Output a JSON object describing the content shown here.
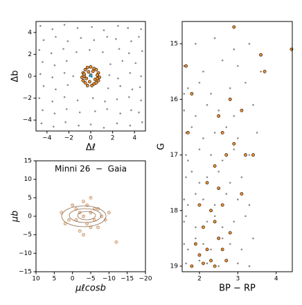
{
  "chart_data": [
    {
      "type": "scatter",
      "xlabel": "Δℓ",
      "ylabel": "Δb",
      "xlim": [
        -5,
        5
      ],
      "ylim": [
        -5,
        5
      ],
      "xticks": [
        {
          "value": -4,
          "label": "−4"
        },
        {
          "value": -2,
          "label": "−2"
        },
        0,
        2,
        4
      ],
      "yticks": [
        {
          "value": -4,
          "label": "−4"
        },
        {
          "value": -2,
          "label": "−2"
        },
        0,
        2,
        4
      ],
      "series": [
        {
          "color": "#8c8c8c",
          "x": [
            -4.6,
            -3.5,
            -2.4,
            -1.2,
            0.1,
            1.2,
            2.5,
            3.4,
            4.6,
            -4.3,
            -3.2,
            -2.1,
            -0.9,
            0.3,
            1.5,
            2.3,
            3.7,
            4.4,
            -4.7,
            -3.6,
            -2.5,
            -1.3,
            -0.1,
            1.1,
            2.6,
            3.5,
            4.7,
            -4.4,
            -3.3,
            -2.2,
            1.8,
            2.9,
            4.1,
            -4.6,
            -3.5,
            -2.4,
            -1.6,
            1.7,
            2.5,
            3.6,
            4.6,
            -4.3,
            -3.2,
            -2.1,
            1.6,
            2.7,
            3.8,
            4.5,
            -4.7,
            -3.5,
            -2.4,
            -1.2,
            0.2,
            1.3,
            2.4,
            3.5,
            4.6,
            -4.4,
            -3.3,
            -2.2,
            -1.0,
            0.4,
            1.5,
            2.7,
            3.7,
            4.4,
            -4.5,
            -3.4,
            -2.3,
            -1.1,
            0.0,
            1.2,
            2.4,
            3.6,
            4.7
          ],
          "y": [
            4.6,
            4.3,
            4.7,
            4.4,
            4.5,
            4.2,
            4.6,
            4.4,
            4.3,
            3.3,
            3.6,
            3.2,
            3.5,
            3.3,
            3.6,
            3.4,
            3.2,
            3.6,
            2.4,
            2.1,
            2.5,
            2.2,
            2.4,
            2.2,
            2.5,
            2.1,
            2.3,
            1.3,
            1.0,
            1.4,
            1.1,
            1.4,
            1.2,
            0.2,
            -0.1,
            0.3,
            0.0,
            0.1,
            -0.2,
            0.3,
            0.0,
            -0.9,
            -1.2,
            -0.8,
            -1.1,
            -0.9,
            -1.2,
            -1.0,
            -2.0,
            -2.3,
            -1.9,
            -2.2,
            -2.0,
            -2.3,
            -2.1,
            -1.9,
            -2.2,
            -3.1,
            -3.4,
            -3.0,
            -3.3,
            -3.2,
            -3.0,
            -3.4,
            -3.1,
            -3.3,
            -4.3,
            -4.6,
            -4.2,
            -4.5,
            -4.4,
            -4.7,
            -4.3,
            -4.5,
            -4.2
          ]
        },
        {
          "color": "#f28e2b",
          "edgecolor": "#000000",
          "x": [
            -0.7,
            -0.5,
            -0.3,
            0.0,
            0.3,
            0.5,
            0.7,
            -0.8,
            -0.6,
            -0.2,
            0.2,
            0.6,
            0.8,
            -0.7,
            -0.4,
            0.0,
            0.4,
            0.7,
            -0.5,
            -0.1,
            0.3,
            0.5,
            -0.3,
            0.1,
            -0.6,
            0.6
          ],
          "y": [
            0.3,
            0.6,
            0.8,
            0.85,
            0.7,
            0.6,
            0.3,
            -0.1,
            0.0,
            0.4,
            0.45,
            0.1,
            -0.1,
            -0.4,
            -0.2,
            0.1,
            -0.3,
            -0.4,
            -0.6,
            -0.5,
            -0.7,
            -0.6,
            -0.85,
            -0.85,
            0.2,
            -0.2
          ]
        },
        {
          "color": "#1f9bd6",
          "x": [
            0.0,
            -0.1,
            0.1
          ],
          "y": [
            0.1,
            0.0,
            -0.05
          ]
        }
      ]
    },
    {
      "type": "scatter",
      "title": "Minni 26  −  Gaia",
      "xlabel": "μℓcosb",
      "ylabel": "μb",
      "xlim": [
        10,
        -20
      ],
      "ylim": [
        -15,
        15
      ],
      "xticks": [
        10,
        5,
        0,
        {
          "value": -5,
          "label": "−5"
        },
        {
          "value": -10,
          "label": "−10"
        },
        {
          "value": -15,
          "label": "−15"
        },
        {
          "value": -20,
          "label": "−20"
        }
      ],
      "yticks": [
        {
          "value": -15,
          "label": "−15"
        },
        {
          "value": -10,
          "label": "−10"
        },
        {
          "value": -5,
          "label": "−5"
        },
        0,
        5,
        10,
        15
      ],
      "series": [
        {
          "color": "#f5d5b5",
          "edgecolor": "#b08060",
          "x": [
            -3,
            -5,
            -1,
            -7,
            0,
            -4,
            -2,
            -6,
            -8,
            2,
            -3,
            -5,
            -1,
            -9,
            -4,
            -2,
            -6,
            1,
            -10,
            -3,
            -7,
            -12,
            3,
            -5
          ],
          "y": [
            0,
            1,
            -1,
            2,
            3,
            -2,
            1,
            -1,
            0,
            -2,
            4,
            -3,
            2,
            -1,
            3,
            -4,
            2,
            -1,
            1,
            -5,
            -3,
            -7,
            1,
            5
          ]
        }
      ]
    },
    {
      "type": "scatter",
      "xlabel": "BP − RP",
      "ylabel": "G",
      "xlim": [
        1.55,
        4.42
      ],
      "ylim": [
        19.1,
        14.6
      ],
      "xticks": [
        2,
        3,
        4
      ],
      "yticks": [
        15,
        16,
        17,
        18,
        19
      ],
      "series": [
        {
          "color": "#8c8c8c",
          "x": [
            1.9,
            2.4,
            2.9,
            3.3,
            1.6,
            2.1,
            2.6,
            3.0,
            3.6,
            1.7,
            2.0,
            2.3,
            2.8,
            3.2,
            1.6,
            1.6,
            1.9,
            2.2,
            2.5,
            2.9,
            3.4,
            1.65,
            1.8,
            2.1,
            2.4,
            2.7,
            3.0,
            3.5,
            1.65,
            1.7,
            2.0,
            2.3,
            2.6,
            2.9,
            3.3,
            1.65,
            1.8,
            2.0,
            2.2,
            2.5,
            2.8,
            3.1,
            1.6,
            1.7,
            1.9,
            2.1,
            2.4,
            2.7,
            3.0,
            3.3,
            1.6,
            1.65,
            1.9,
            2.2,
            2.4,
            2.6,
            2.9,
            3.2,
            1.6,
            1.7,
            1.9,
            2.1,
            2.3,
            2.6,
            2.8,
            3.1,
            3.4,
            1.65,
            1.8,
            2.0,
            2.2,
            2.5,
            2.7,
            3.0,
            3.3
          ],
          "y": [
            15.0,
            14.9,
            15.1,
            15.0,
            15.4,
            15.5,
            15.3,
            15.4,
            15.5,
            15.8,
            15.7,
            15.9,
            15.8,
            15.7,
            15.9,
            16.2,
            16.3,
            16.1,
            16.2,
            16.3,
            16.1,
            16.6,
            16.5,
            16.7,
            16.6,
            16.5,
            16.7,
            16.6,
            17.0,
            17.1,
            16.9,
            17.0,
            17.1,
            16.9,
            17.0,
            17.4,
            17.3,
            17.5,
            17.4,
            17.3,
            17.5,
            17.4,
            17.8,
            17.9,
            17.7,
            17.8,
            17.9,
            17.7,
            17.8,
            17.9,
            18.2,
            18.1,
            18.3,
            18.2,
            18.1,
            18.3,
            18.2,
            18.1,
            18.6,
            18.7,
            18.5,
            18.6,
            18.7,
            18.5,
            18.6,
            18.7,
            18.5,
            18.95,
            19.0,
            18.9,
            18.95,
            19.0,
            18.9,
            18.95,
            19.0
          ]
        },
        {
          "color": "#f28e2b",
          "edgecolor": "#000000",
          "x": [
            2.9,
            3.6,
            4.4,
            3.7,
            1.65,
            2.8,
            1.8,
            2.5,
            3.1,
            2.6,
            2.9,
            3.2,
            1.7,
            2.4,
            2.7,
            3.4,
            2.2,
            2.5,
            3.1,
            2.0,
            2.3,
            2.6,
            2.1,
            2.4,
            2.8,
            1.9,
            2.2,
            2.5,
            2.0,
            2.3,
            2.6,
            1.8,
            2.1,
            2.4,
            2.7
          ],
          "y": [
            14.7,
            15.2,
            15.1,
            15.5,
            15.4,
            16.0,
            15.9,
            16.3,
            16.2,
            16.6,
            16.8,
            17.0,
            16.6,
            17.2,
            17.0,
            17.0,
            17.5,
            17.6,
            17.7,
            17.9,
            18.0,
            17.9,
            18.3,
            18.2,
            18.4,
            18.6,
            18.7,
            18.5,
            18.8,
            18.9,
            18.7,
            19.0,
            18.95,
            19.0,
            18.9
          ]
        }
      ]
    }
  ]
}
